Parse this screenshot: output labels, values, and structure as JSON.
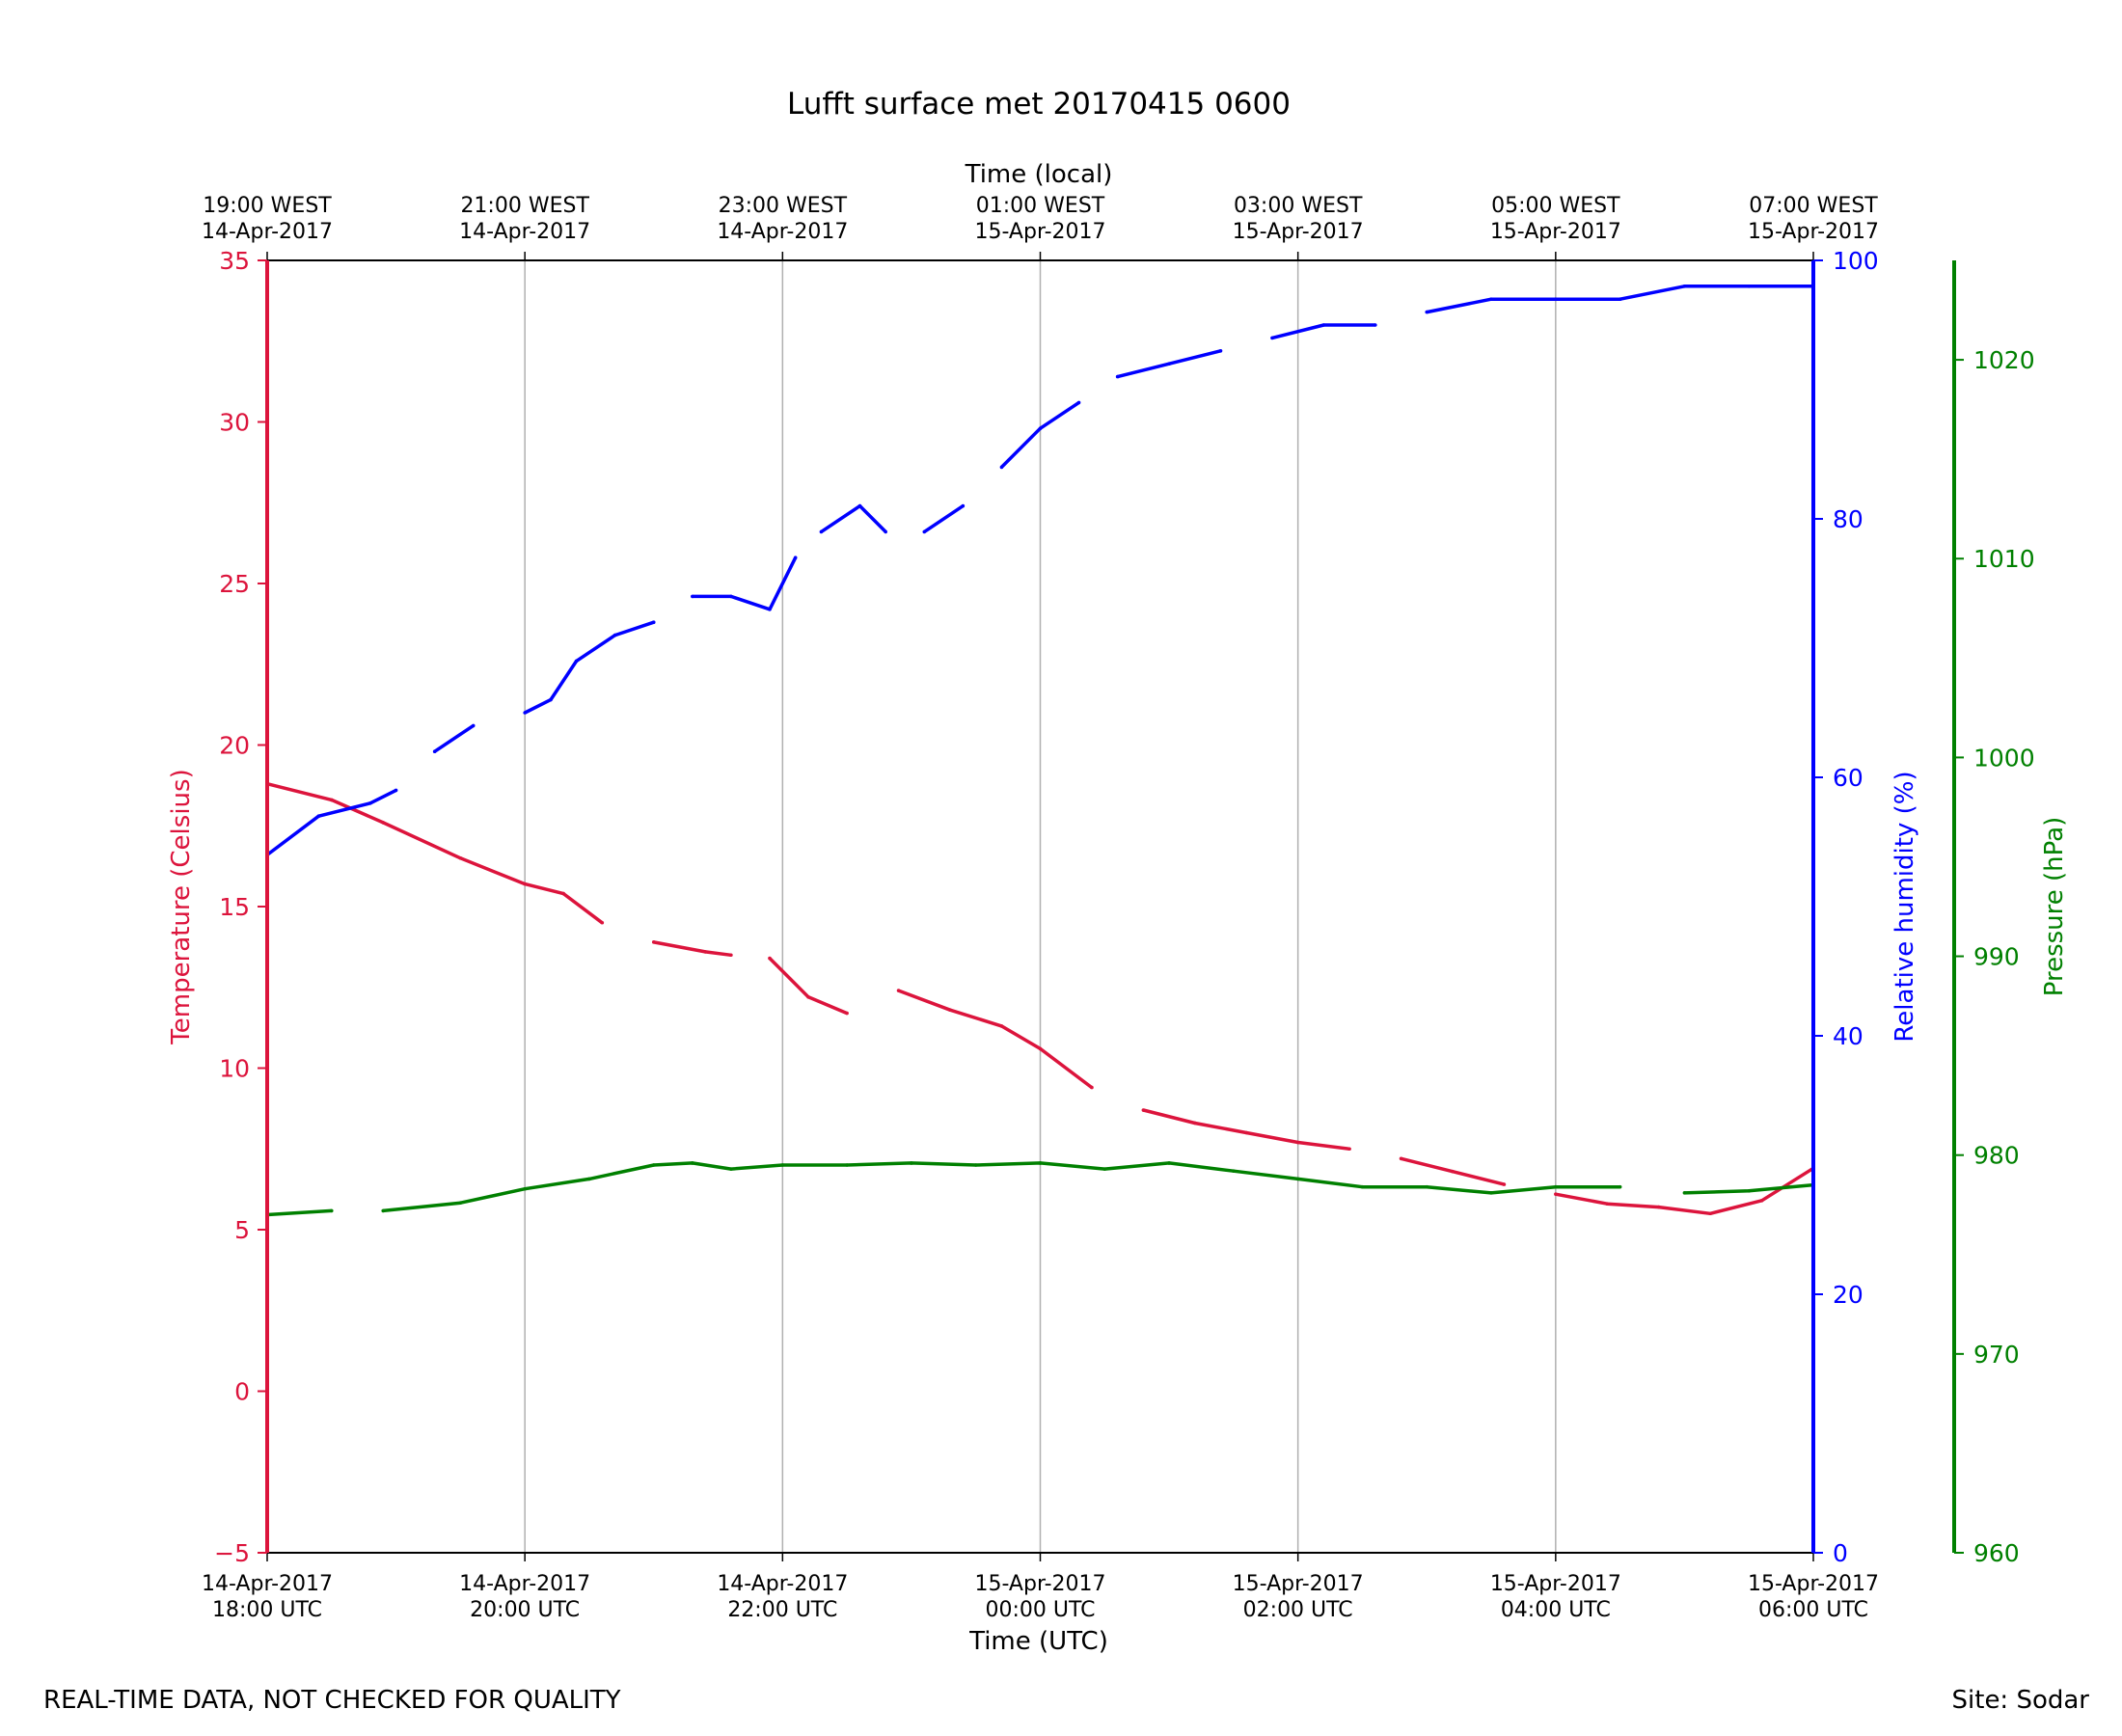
{
  "title": "Lufft surface met 20170415 0600",
  "footer_left": "REAL-TIME DATA, NOT CHECKED FOR QUALITY",
  "footer_right": "Site: Sodar",
  "colors": {
    "temperature": "#dc143c",
    "humidity": "#0000ff",
    "pressure": "#008000",
    "grid": "#b0b0b0"
  },
  "chart_data": {
    "type": "line",
    "title": "Lufft surface met 20170415 0600",
    "xlabel": "Time (UTC)",
    "x2label": "Time (local)",
    "xlim": [
      0,
      12
    ],
    "x_ticks": [
      {
        "bottom": [
          "14-Apr-2017",
          "18:00 UTC"
        ],
        "top": [
          "19:00 WEST",
          "14-Apr-2017"
        ]
      },
      {
        "bottom": [
          "14-Apr-2017",
          "20:00 UTC"
        ],
        "top": [
          "21:00 WEST",
          "14-Apr-2017"
        ]
      },
      {
        "bottom": [
          "14-Apr-2017",
          "22:00 UTC"
        ],
        "top": [
          "23:00 WEST",
          "14-Apr-2017"
        ]
      },
      {
        "bottom": [
          "15-Apr-2017",
          "00:00 UTC"
        ],
        "top": [
          "01:00 WEST",
          "15-Apr-2017"
        ]
      },
      {
        "bottom": [
          "15-Apr-2017",
          "02:00 UTC"
        ],
        "top": [
          "03:00 WEST",
          "15-Apr-2017"
        ]
      },
      {
        "bottom": [
          "15-Apr-2017",
          "04:00 UTC"
        ],
        "top": [
          "05:00 WEST",
          "15-Apr-2017"
        ]
      },
      {
        "bottom": [
          "15-Apr-2017",
          "06:00 UTC"
        ],
        "top": [
          "07:00 WEST",
          "15-Apr-2017"
        ]
      }
    ],
    "grid": "vertical",
    "axes": {
      "temperature": {
        "label": "Temperature (Celsius)",
        "ylim": [
          -5,
          35
        ],
        "ticks": [
          -5,
          0,
          5,
          10,
          15,
          20,
          25,
          30,
          35
        ],
        "tick_labels": [
          "−5",
          "0",
          "5",
          "10",
          "15",
          "20",
          "25",
          "30",
          "35"
        ]
      },
      "humidity": {
        "label": "Relative humidity (%)",
        "ylim": [
          0,
          100
        ],
        "ticks": [
          0,
          20,
          40,
          60,
          80,
          100
        ],
        "tick_labels": [
          "0",
          "20",
          "40",
          "60",
          "80",
          "100"
        ]
      },
      "pressure": {
        "label": "Pressure (hPa)",
        "ylim": [
          960,
          1025
        ],
        "ticks": [
          960,
          970,
          980,
          990,
          1000,
          1010,
          1020
        ],
        "tick_labels": [
          "960",
          "970",
          "980",
          "990",
          "1000",
          "1010",
          "1020"
        ]
      }
    },
    "series": [
      {
        "name": "Temperature (Celsius)",
        "axis": "temperature",
        "color": "#dc143c",
        "x": [
          0,
          0.5,
          0.9,
          1.5,
          2.0,
          2.3,
          2.6,
          3.0,
          3.4,
          3.6,
          3.9,
          4.2,
          4.5,
          4.9,
          5.3,
          5.7,
          6.0,
          6.4,
          6.8,
          7.2,
          7.6,
          8.0,
          8.4,
          8.8,
          9.2,
          9.6,
          10.0,
          10.4,
          10.8,
          11.2,
          11.6,
          12.0
        ],
        "y": [
          18.8,
          18.3,
          17.6,
          16.5,
          15.7,
          15.4,
          14.5,
          13.9,
          13.6,
          13.5,
          13.4,
          12.2,
          11.7,
          12.4,
          11.8,
          11.3,
          10.6,
          9.4,
          8.7,
          8.3,
          8.0,
          7.7,
          7.5,
          7.2,
          6.8,
          6.4,
          6.1,
          5.8,
          5.7,
          5.5,
          5.9,
          6.9
        ],
        "gaps_after": [
          6,
          9,
          12,
          17,
          22,
          25
        ]
      },
      {
        "name": "Relative humidity (%)",
        "axis": "humidity",
        "color": "#0000ff",
        "x": [
          0,
          0.4,
          0.8,
          1.0,
          1.3,
          1.6,
          2.0,
          2.2,
          2.4,
          2.7,
          3.0,
          3.3,
          3.6,
          3.9,
          4.1,
          4.3,
          4.6,
          4.8,
          5.1,
          5.4,
          5.7,
          6.0,
          6.3,
          6.6,
          7.0,
          7.4,
          7.8,
          8.2,
          8.6,
          9.0,
          9.5,
          10.0,
          10.5,
          11.0,
          11.5,
          12.0
        ],
        "y": [
          54,
          57,
          58,
          59,
          62,
          64,
          65,
          66,
          69,
          71,
          72,
          74,
          74,
          73,
          77,
          79,
          81,
          79,
          79,
          81,
          84,
          87,
          89,
          91,
          92,
          93,
          94,
          95,
          95,
          96,
          97,
          97,
          97,
          98,
          98,
          98
        ],
        "gaps_after": [
          3,
          5,
          10,
          14,
          17,
          19,
          22,
          25,
          28
        ]
      },
      {
        "name": "Pressure (hPa)",
        "axis": "pressure",
        "color": "#008000",
        "x": [
          0,
          0.5,
          0.9,
          1.5,
          2.0,
          2.5,
          3.0,
          3.3,
          3.6,
          4.0,
          4.5,
          5.0,
          5.5,
          6.0,
          6.5,
          7.0,
          7.5,
          8.0,
          8.5,
          9.0,
          9.5,
          10.0,
          10.5,
          11.0,
          11.5,
          12.0
        ],
        "y": [
          977.0,
          977.2,
          977.2,
          977.6,
          978.3,
          978.8,
          979.5,
          979.6,
          979.3,
          979.5,
          979.5,
          979.6,
          979.5,
          979.6,
          979.3,
          979.6,
          979.2,
          978.8,
          978.4,
          978.4,
          978.1,
          978.4,
          978.4,
          978.1,
          978.2,
          978.5
        ],
        "gaps_after": [
          1,
          22
        ]
      }
    ]
  }
}
